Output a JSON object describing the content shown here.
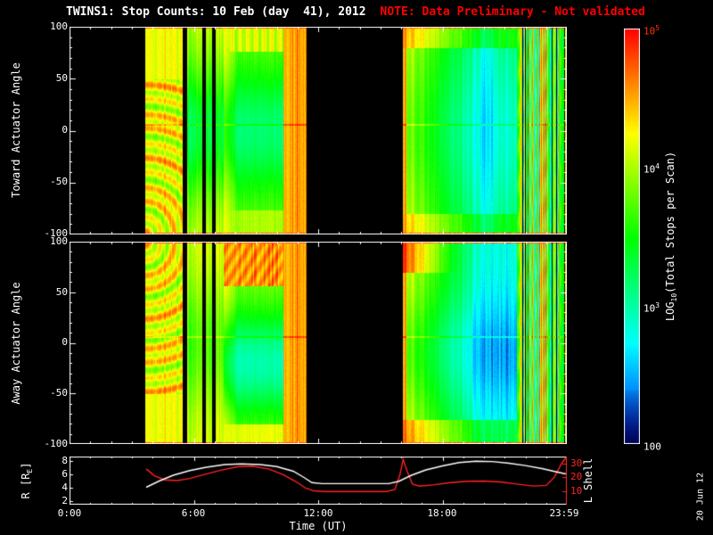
{
  "title": {
    "main": "TWINS1: Stop Counts: 10 Feb (day  41), 2012",
    "note": "NOTE: Data Preliminary - Not validated"
  },
  "date_stamp": "20 Jun 12",
  "colors": {
    "background": "#000000",
    "axis": "#ffffff",
    "note": "#ff0000",
    "l_shell_axis": "#ff2222",
    "colorbar_top_tick": "#ff3300"
  },
  "axes": {
    "x_label": "Time (UT)",
    "x_ticks": [
      "0:00",
      "6:00",
      "12:00",
      "18:00",
      "23:59"
    ],
    "toward_label": "Toward Actuator Angle",
    "away_label": "Away Actuator Angle",
    "angle_ticks": [
      "100",
      "50",
      "0",
      "-50",
      "-100"
    ],
    "orbit_left_prefix": "R [R",
    "orbit_left_sub": "E",
    "orbit_left_suffix": "]",
    "orbit_left_ticks": [
      "8",
      "6",
      "4",
      "2"
    ],
    "orbit_right_label": "L Shell",
    "orbit_right_ticks": [
      "30",
      "20",
      "10"
    ]
  },
  "colorbar": {
    "label_prefix": "LOG",
    "label_sub": "10",
    "label_suffix": "(Total Stops per Scan)",
    "ticks": [
      {
        "base": "10",
        "exp": "5"
      },
      {
        "base": "10",
        "exp": "4"
      },
      {
        "base": "10",
        "exp": "3"
      },
      {
        "base": "100",
        "exp": ""
      }
    ]
  },
  "chart_data": [
    {
      "type": "heatmap",
      "name": "toward_actuator_angle",
      "ylabel": "Toward Actuator Angle",
      "ylim": [
        -100,
        100
      ],
      "yticks": [
        100,
        50,
        0,
        -50,
        -100
      ],
      "x_hours": [
        0,
        24
      ],
      "value_scale": {
        "label": "LOG10(Total Stops per Scan)",
        "min": 100,
        "max": 100000,
        "log": true
      },
      "segments": [
        {
          "t0": 3.65,
          "t1": 5.42,
          "kind": "A",
          "desc": "yellow-orange block, interference ripple arcs in lower half, red edge rows"
        },
        {
          "t0": 5.67,
          "t1": 6.38,
          "kind": "B",
          "desc": "narrow column, yellow edges with cyan core"
        },
        {
          "t0": 6.56,
          "t1": 6.86,
          "kind": "B",
          "desc": "narrow column between black dropouts"
        },
        {
          "t0": 7.04,
          "t1": 7.42,
          "kind": "B",
          "desc": "narrow column between black dropouts"
        },
        {
          "t0": 7.42,
          "t1": 10.3,
          "kind": "C",
          "desc": "cyan-green core, warm left edge, yellow top/bottom bands"
        },
        {
          "t0": 10.3,
          "t1": 11.42,
          "kind": "D",
          "desc": "orange-red column"
        },
        {
          "t0": 16.05,
          "t1": 21.55,
          "kind": "E",
          "desc": "warm yellow left fading to cyan-blue, dark blue streak near right"
        },
        {
          "t0": 21.55,
          "t1": 23.98,
          "kind": "F",
          "desc": "noisy multicolor vertical stripes with black gaps"
        }
      ]
    },
    {
      "type": "heatmap",
      "name": "away_actuator_angle",
      "ylabel": "Away Actuator Angle",
      "ylim": [
        -100,
        100
      ],
      "yticks": [
        100,
        50,
        0,
        -50,
        -100
      ],
      "x_hours": [
        0,
        24
      ],
      "value_scale": {
        "label": "LOG10(Total Stops per Scan)",
        "min": 100,
        "max": 100000,
        "log": true
      },
      "segments": [
        {
          "t0": 3.65,
          "t1": 5.42,
          "kind": "A",
          "desc": "yellow-orange block, ripple arcs in upper half"
        },
        {
          "t0": 5.67,
          "t1": 6.38,
          "kind": "B",
          "desc": "narrow warm column"
        },
        {
          "t0": 6.56,
          "t1": 6.86,
          "kind": "B",
          "desc": "narrow warm column"
        },
        {
          "t0": 7.04,
          "t1": 7.42,
          "kind": "B",
          "desc": "narrow warm column"
        },
        {
          "t0": 7.42,
          "t1": 10.3,
          "kind": "C",
          "desc": "thick orange-red top band, cyan-blue core, warm bottom edge"
        },
        {
          "t0": 10.3,
          "t1": 11.42,
          "kind": "D",
          "desc": "orange-red column"
        },
        {
          "t0": 16.05,
          "t1": 21.55,
          "kind": "E",
          "desc": "yellow-green left fading into deep blue core"
        },
        {
          "t0": 21.55,
          "t1": 23.98,
          "kind": "F",
          "desc": "noisy multicolor vertical stripes with black gaps"
        }
      ]
    },
    {
      "type": "line",
      "name": "orbit",
      "x_hours": [
        0,
        24
      ],
      "left_axis": {
        "label": "R [RE]",
        "ticks": [
          8,
          6,
          4,
          2
        ],
        "color": "#ffffff"
      },
      "right_axis": {
        "label": "L Shell",
        "ticks": [
          30,
          20,
          10
        ],
        "color": "#ff2222"
      },
      "series": [
        {
          "name": "R",
          "color": "#ffffff",
          "points": [
            [
              3.7,
              4.1
            ],
            [
              4.3,
              5.0
            ],
            [
              5.0,
              5.9
            ],
            [
              5.8,
              6.6
            ],
            [
              6.6,
              7.1
            ],
            [
              7.5,
              7.5
            ],
            [
              8.3,
              7.6
            ],
            [
              9.2,
              7.5
            ],
            [
              10.0,
              7.2
            ],
            [
              10.8,
              6.5
            ],
            [
              11.3,
              5.6
            ],
            [
              11.7,
              4.8
            ],
            [
              12.2,
              4.65
            ],
            [
              15.4,
              4.65
            ],
            [
              15.9,
              5.0
            ],
            [
              16.5,
              5.9
            ],
            [
              17.2,
              6.7
            ],
            [
              18.0,
              7.3
            ],
            [
              18.8,
              7.8
            ],
            [
              19.6,
              8.0
            ],
            [
              20.4,
              7.95
            ],
            [
              21.2,
              7.7
            ],
            [
              22.0,
              7.35
            ],
            [
              22.8,
              6.9
            ],
            [
              23.5,
              6.4
            ],
            [
              23.95,
              6.1
            ]
          ]
        },
        {
          "name": "L Shell",
          "color": "#ff2222",
          "points": [
            [
              3.7,
              26
            ],
            [
              4.1,
              21
            ],
            [
              4.6,
              18
            ],
            [
              5.2,
              17.5
            ],
            [
              5.8,
              19
            ],
            [
              6.5,
              22
            ],
            [
              7.3,
              25
            ],
            [
              8.1,
              27.5
            ],
            [
              8.8,
              28
            ],
            [
              9.6,
              26
            ],
            [
              10.3,
              22
            ],
            [
              10.9,
              17
            ],
            [
              11.4,
              12
            ],
            [
              11.8,
              10
            ],
            [
              12.3,
              9.6
            ],
            [
              15.3,
              9.6
            ],
            [
              15.7,
              11
            ],
            [
              15.95,
              22
            ],
            [
              16.1,
              33
            ],
            [
              16.3,
              24
            ],
            [
              16.55,
              15
            ],
            [
              16.9,
              13.5
            ],
            [
              17.6,
              14.5
            ],
            [
              18.4,
              16
            ],
            [
              19.2,
              17
            ],
            [
              20.0,
              17.2
            ],
            [
              20.8,
              16.5
            ],
            [
              21.6,
              15
            ],
            [
              22.4,
              13.5
            ],
            [
              23.0,
              14
            ],
            [
              23.4,
              20
            ],
            [
              23.75,
              30
            ],
            [
              23.95,
              34
            ]
          ]
        }
      ]
    }
  ]
}
